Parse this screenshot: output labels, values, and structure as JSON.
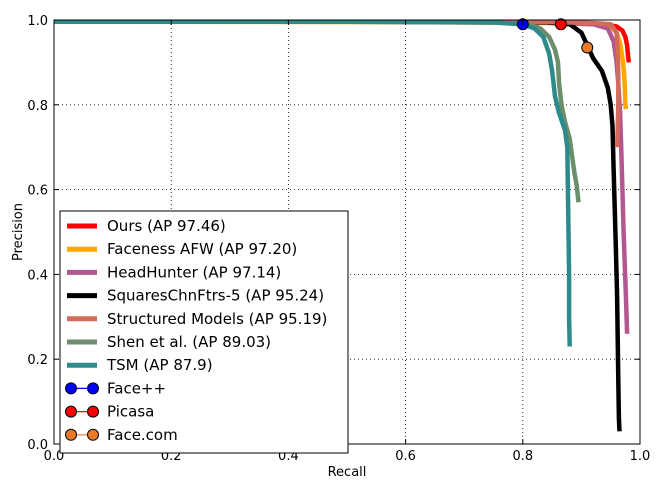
{
  "chart_data": {
    "type": "line",
    "xlabel": "Recall",
    "ylabel": "Precision",
    "xlim": [
      0.0,
      1.0
    ],
    "ylim": [
      0.0,
      1.0
    ],
    "xticks": [
      "0.0",
      "0.2",
      "0.4",
      "0.6",
      "0.8",
      "1.0"
    ],
    "yticks": [
      "0.0",
      "0.2",
      "0.4",
      "0.6",
      "0.8",
      "1.0"
    ],
    "grid": true,
    "legend_position": "lower-left",
    "series": [
      {
        "name": "Ours (AP 97.46)",
        "color": "#ff0000",
        "kind": "line",
        "points": [
          [
            0,
            0.996
          ],
          [
            0.5,
            0.996
          ],
          [
            0.8,
            0.995
          ],
          [
            0.9,
            0.993
          ],
          [
            0.94,
            0.99
          ],
          [
            0.96,
            0.985
          ],
          [
            0.97,
            0.975
          ],
          [
            0.975,
            0.96
          ],
          [
            0.978,
            0.94
          ],
          [
            0.98,
            0.91
          ],
          [
            0.981,
            0.9
          ]
        ]
      },
      {
        "name": "Faceness AFW (AP 97.20)",
        "color": "#ffa500",
        "kind": "line",
        "points": [
          [
            0,
            0.996
          ],
          [
            0.6,
            0.995
          ],
          [
            0.85,
            0.993
          ],
          [
            0.92,
            0.99
          ],
          [
            0.95,
            0.985
          ],
          [
            0.96,
            0.97
          ],
          [
            0.965,
            0.95
          ],
          [
            0.968,
            0.93
          ],
          [
            0.971,
            0.9
          ],
          [
            0.973,
            0.87
          ],
          [
            0.974,
            0.84
          ],
          [
            0.975,
            0.8
          ],
          [
            0.976,
            0.79
          ]
        ]
      },
      {
        "name": "HeadHunter (AP 97.14)",
        "color": "#b2578f",
        "kind": "line",
        "points": [
          [
            0,
            0.996
          ],
          [
            0.6,
            0.996
          ],
          [
            0.85,
            0.994
          ],
          [
            0.92,
            0.99
          ],
          [
            0.945,
            0.98
          ],
          [
            0.955,
            0.95
          ],
          [
            0.96,
            0.9
          ],
          [
            0.963,
            0.85
          ],
          [
            0.966,
            0.78
          ],
          [
            0.968,
            0.7
          ],
          [
            0.97,
            0.6
          ],
          [
            0.972,
            0.5
          ],
          [
            0.974,
            0.42
          ],
          [
            0.976,
            0.35
          ],
          [
            0.978,
            0.26
          ]
        ]
      },
      {
        "name": "SquaresChnFtrs-5 (AP 95.24)",
        "color": "#000000",
        "kind": "line",
        "points": [
          [
            0,
            0.996
          ],
          [
            0.6,
            0.996
          ],
          [
            0.84,
            0.994
          ],
          [
            0.88,
            0.99
          ],
          [
            0.9,
            0.97
          ],
          [
            0.91,
            0.94
          ],
          [
            0.92,
            0.91
          ],
          [
            0.935,
            0.88
          ],
          [
            0.945,
            0.84
          ],
          [
            0.95,
            0.8
          ],
          [
            0.953,
            0.75
          ],
          [
            0.955,
            0.65
          ],
          [
            0.957,
            0.55
          ],
          [
            0.959,
            0.45
          ],
          [
            0.961,
            0.35
          ],
          [
            0.962,
            0.25
          ],
          [
            0.963,
            0.15
          ],
          [
            0.964,
            0.06
          ],
          [
            0.965,
            0.03
          ]
        ]
      },
      {
        "name": "Structured Models (AP 95.19)",
        "color": "#d36b5d",
        "kind": "line",
        "points": [
          [
            0.55,
            0.997
          ],
          [
            0.7,
            0.996
          ],
          [
            0.85,
            0.995
          ],
          [
            0.92,
            0.993
          ],
          [
            0.95,
            0.99
          ],
          [
            0.96,
            0.97
          ],
          [
            0.962,
            0.93
          ],
          [
            0.963,
            0.87
          ],
          [
            0.963,
            0.8
          ],
          [
            0.962,
            0.74
          ],
          [
            0.961,
            0.7
          ]
        ]
      },
      {
        "name": "Shen et al. (AP 89.03)",
        "color": "#6b8e6b",
        "kind": "line",
        "points": [
          [
            0,
            0.996
          ],
          [
            0.5,
            0.996
          ],
          [
            0.75,
            0.994
          ],
          [
            0.81,
            0.99
          ],
          [
            0.83,
            0.98
          ],
          [
            0.845,
            0.96
          ],
          [
            0.855,
            0.93
          ],
          [
            0.86,
            0.9
          ],
          [
            0.862,
            0.85
          ],
          [
            0.866,
            0.8
          ],
          [
            0.872,
            0.76
          ],
          [
            0.88,
            0.72
          ],
          [
            0.884,
            0.68
          ],
          [
            0.888,
            0.64
          ],
          [
            0.892,
            0.61
          ],
          [
            0.895,
            0.57
          ]
        ]
      },
      {
        "name": "TSM (AP 87.9)",
        "color": "#2e8b8b",
        "kind": "line",
        "points": [
          [
            0,
            0.996
          ],
          [
            0.5,
            0.996
          ],
          [
            0.75,
            0.994
          ],
          [
            0.8,
            0.99
          ],
          [
            0.82,
            0.98
          ],
          [
            0.835,
            0.96
          ],
          [
            0.845,
            0.92
          ],
          [
            0.85,
            0.88
          ],
          [
            0.855,
            0.82
          ],
          [
            0.862,
            0.78
          ],
          [
            0.872,
            0.74
          ],
          [
            0.876,
            0.7
          ],
          [
            0.877,
            0.6
          ],
          [
            0.878,
            0.5
          ],
          [
            0.879,
            0.4
          ],
          [
            0.879,
            0.3
          ],
          [
            0.88,
            0.23
          ]
        ]
      },
      {
        "name": "Face++",
        "color": "#0000ff",
        "kind": "point",
        "points": [
          [
            0.8,
            0.99
          ]
        ]
      },
      {
        "name": "Picasa",
        "color": "#ff0000",
        "kind": "point",
        "points": [
          [
            0.865,
            0.99
          ]
        ]
      },
      {
        "name": "Face.com",
        "color": "#e87a2a",
        "kind": "point",
        "points": [
          [
            0.91,
            0.935
          ]
        ]
      }
    ]
  }
}
